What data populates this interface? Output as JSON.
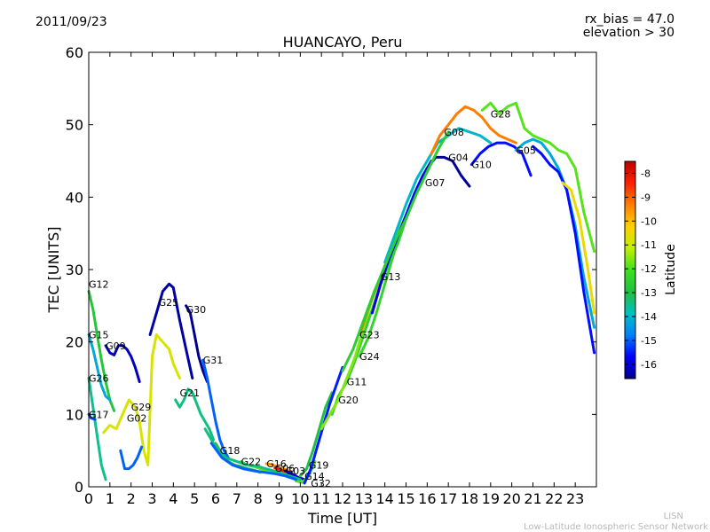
{
  "header": {
    "date": "2011/09/23",
    "rx_bias": "rx_bias = 47.0",
    "elevation": "elevation > 30"
  },
  "footer": {
    "line1": "LISN",
    "line2": "Low-Latitude Ionospheric Sensor Network"
  },
  "chart_data": {
    "type": "scatter",
    "title": "HUANCAYO, Peru",
    "xlabel": "Time [UT]",
    "ylabel": "TEC [UNITS]",
    "xlim": [
      0,
      24
    ],
    "ylim": [
      0,
      60
    ],
    "xticks": [
      0,
      1,
      2,
      3,
      4,
      5,
      6,
      7,
      8,
      9,
      10,
      11,
      12,
      13,
      14,
      15,
      16,
      17,
      18,
      19,
      20,
      21,
      22,
      23
    ],
    "yticks": [
      0,
      10,
      20,
      30,
      40,
      50,
      60
    ],
    "colorbar": {
      "label": "Latitude",
      "range": [
        -16.6,
        -7.5
      ],
      "ticks": [
        -8,
        -9,
        -10,
        -11,
        -12,
        -13,
        -14,
        -15,
        -16
      ],
      "colors": [
        "#00008f",
        "#0000ff",
        "#0080ff",
        "#00c0c0",
        "#20c040",
        "#40e020",
        "#c0f000",
        "#ffd000",
        "#ff8000",
        "#ff2000",
        "#c00000"
      ]
    },
    "series": [
      {
        "name": "G12",
        "label_x": 0.0,
        "label_y": 28.0,
        "lat": -12.8,
        "x": [
          0.0,
          0.2,
          0.4,
          0.6,
          0.8,
          1.0,
          1.2
        ],
        "y": [
          27.0,
          24.5,
          21.0,
          17.5,
          14.5,
          12.0,
          10.5
        ]
      },
      {
        "name": "G15",
        "label_x": 0.0,
        "label_y": 21.0,
        "lat": -14.2,
        "x": [
          0.0,
          0.2,
          0.4,
          0.6,
          0.8,
          1.0
        ],
        "y": [
          21.0,
          19.0,
          16.5,
          14.0,
          12.5,
          12.0
        ]
      },
      {
        "name": "G26",
        "label_x": 0.0,
        "label_y": 15.0,
        "lat": -13.5,
        "x": [
          0.0,
          0.2,
          0.4,
          0.6,
          0.8
        ],
        "y": [
          15.0,
          11.0,
          7.0,
          3.0,
          1.0
        ]
      },
      {
        "name": "G17",
        "label_x": 0.0,
        "label_y": 10.0,
        "lat": -15.2,
        "x": [
          0.0,
          0.1,
          0.2,
          0.3
        ],
        "y": [
          10.0,
          9.5,
          9.4,
          9.3
        ]
      },
      {
        "name": "G09",
        "label_x": 0.8,
        "label_y": 19.5,
        "lat": -16.2,
        "x": [
          0.8,
          1.0,
          1.2,
          1.4,
          1.6,
          1.8,
          2.0,
          2.2,
          2.4
        ],
        "y": [
          19.5,
          18.5,
          18.2,
          19.5,
          19.5,
          19.0,
          18.0,
          16.5,
          14.5
        ]
      },
      {
        "name": "G29",
        "label_x": 2.0,
        "label_y": 11.0,
        "lat": -10.8,
        "x": [
          0.7,
          1.0,
          1.3,
          1.6,
          1.9,
          2.2,
          2.4,
          2.6,
          2.8,
          3.0,
          3.2,
          3.5,
          3.8,
          4.0,
          4.3
        ],
        "y": [
          7.5,
          8.5,
          8.0,
          10.0,
          12.0,
          11.0,
          9.0,
          5.0,
          3.0,
          18.0,
          21.0,
          20.0,
          19.0,
          17.0,
          15.0
        ]
      },
      {
        "name": "G02",
        "label_x": 1.8,
        "label_y": 9.5,
        "lat": -15.0,
        "x": [
          1.5,
          1.7,
          1.9,
          2.1,
          2.3,
          2.5
        ],
        "y": [
          5.0,
          2.5,
          2.5,
          3.0,
          4.0,
          5.5
        ]
      },
      {
        "name": "G25",
        "label_x": 3.3,
        "label_y": 25.5,
        "lat": -16.4,
        "x": [
          2.9,
          3.2,
          3.5,
          3.8,
          4.0,
          4.3,
          4.6,
          4.9
        ],
        "y": [
          21.0,
          24.0,
          27.0,
          28.0,
          27.5,
          23.0,
          19.0,
          15.0
        ]
      },
      {
        "name": "G30",
        "label_x": 4.6,
        "label_y": 24.5,
        "lat": -16.6,
        "x": [
          4.6,
          4.8,
          5.0,
          5.2,
          5.4,
          5.6
        ],
        "y": [
          25.0,
          24.0,
          21.0,
          18.0,
          16.0,
          14.5
        ]
      },
      {
        "name": "G31",
        "label_x": 5.4,
        "label_y": 17.5,
        "lat": -15.0,
        "x": [
          5.4,
          5.6,
          5.8,
          6.0,
          6.2,
          6.4,
          6.6
        ],
        "y": [
          17.5,
          15.0,
          12.0,
          9.0,
          6.5,
          5.0,
          4.0
        ]
      },
      {
        "name": "G21",
        "label_x": 4.3,
        "label_y": 13.0,
        "lat": -13.4,
        "x": [
          4.1,
          4.3,
          4.5,
          4.7,
          4.9,
          5.1,
          5.3,
          5.5,
          5.7,
          5.9
        ],
        "y": [
          12.0,
          11.0,
          12.0,
          13.5,
          13.0,
          11.5,
          10.0,
          9.0,
          8.0,
          6.5
        ]
      },
      {
        "name": "G18",
        "label_x": 6.2,
        "label_y": 5.0,
        "lat": -13.0,
        "x": [
          6.0,
          6.3,
          6.6,
          6.9,
          7.2,
          7.5,
          7.8,
          8.1
        ],
        "y": [
          6.0,
          4.5,
          3.5,
          3.0,
          2.8,
          2.5,
          2.3,
          2.0
        ]
      },
      {
        "name": "G22",
        "label_x": 7.2,
        "label_y": 3.5,
        "lat": -11.8,
        "x": [
          7.2,
          7.5,
          7.8,
          8.1,
          8.4,
          8.7,
          9.0
        ],
        "y": [
          3.5,
          3.0,
          2.8,
          2.5,
          2.2,
          2.0,
          1.8
        ]
      },
      {
        "name": "G16",
        "label_x": 8.4,
        "label_y": 3.2,
        "lat": -9.5,
        "x": [
          8.4,
          8.7,
          9.0,
          9.3,
          9.6
        ],
        "y": [
          3.2,
          3.0,
          2.7,
          2.4,
          2.0
        ]
      },
      {
        "name": "G06",
        "label_x": 8.8,
        "label_y": 2.6,
        "lat": -8.2,
        "x": [
          8.8,
          9.1,
          9.4,
          9.7,
          10.0
        ],
        "y": [
          2.6,
          2.3,
          2.0,
          1.5,
          1.0
        ]
      },
      {
        "name": "G03",
        "label_x": 9.3,
        "label_y": 2.2,
        "lat": -16.0,
        "x": [
          9.3,
          9.6,
          9.9,
          10.2
        ],
        "y": [
          2.2,
          1.8,
          1.3,
          1.0
        ]
      },
      {
        "name": "G19",
        "label_x": 10.4,
        "label_y": 3.0,
        "lat": -13.0,
        "x": [
          10.0,
          10.3,
          10.6,
          10.9,
          11.2,
          11.5
        ],
        "y": [
          1.5,
          2.5,
          5.0,
          8.0,
          11.0,
          13.0
        ]
      },
      {
        "name": "G14",
        "label_x": 10.2,
        "label_y": 1.5,
        "lat": -12.0,
        "x": [
          9.8,
          10.1,
          10.4,
          10.7
        ],
        "y": [
          0.8,
          0.6,
          1.5,
          3.5
        ]
      },
      {
        "name": "G32",
        "label_x": 10.5,
        "label_y": 0.5,
        "lat": -15.5,
        "x": [
          10.2,
          10.5,
          10.8,
          11.1,
          11.4,
          11.7,
          12.0
        ],
        "y": [
          0.5,
          2.5,
          5.5,
          8.5,
          11.5,
          14.0,
          16.5
        ]
      },
      {
        "name": "G11",
        "label_x": 12.2,
        "label_y": 14.5,
        "lat": -12.5,
        "x": [
          11.5,
          11.8,
          12.2,
          12.6,
          13.0,
          13.4,
          13.8,
          14.2,
          14.6,
          15.0,
          15.4,
          15.8
        ],
        "y": [
          10.0,
          12.5,
          14.5,
          17.5,
          21.0,
          24.5,
          28.0,
          31.0,
          33.5,
          37.0,
          40.0,
          43.0
        ]
      },
      {
        "name": "G20",
        "label_x": 11.8,
        "label_y": 12.0,
        "lat": -11.6,
        "x": [
          11.0,
          11.4,
          11.8,
          12.2,
          12.6,
          13.0,
          13.4,
          13.8,
          14.2,
          14.6,
          15.0
        ],
        "y": [
          8.0,
          10.0,
          12.0,
          15.0,
          18.0,
          22.0,
          26.0,
          29.0,
          32.0,
          35.0,
          37.5
        ]
      },
      {
        "name": "G24",
        "label_x": 12.8,
        "label_y": 18.0,
        "lat": -12.4,
        "x": [
          12.8,
          13.2,
          13.6,
          14.0,
          14.4,
          14.8,
          15.2,
          15.6,
          16.0
        ],
        "y": [
          18.0,
          20.5,
          24.0,
          28.0,
          32.0,
          35.5,
          38.5,
          41.5,
          44.0
        ]
      },
      {
        "name": "G23",
        "label_x": 12.8,
        "label_y": 21.0,
        "lat": -9.0,
        "x": [
          12.8,
          13.2,
          13.6,
          14.0,
          14.4
        ],
        "y": [
          21.0,
          24.5,
          27.5,
          30.5,
          33.5
        ]
      },
      {
        "name": "G13",
        "label_x": 13.8,
        "label_y": 29.0,
        "lat": -15.8,
        "x": [
          13.4,
          13.8,
          14.2,
          14.6,
          15.0,
          15.4,
          15.8,
          16.2
        ],
        "y": [
          24.0,
          28.0,
          31.5,
          34.5,
          37.5,
          40.5,
          43.0,
          45.0
        ]
      },
      {
        "name": "G07",
        "label_x": 15.9,
        "label_y": 42.0,
        "lat": -14.0,
        "x": [
          14.0,
          14.5,
          15.0,
          15.5,
          16.0,
          16.5,
          17.0,
          17.5,
          18.0,
          18.5,
          19.0
        ],
        "y": [
          31.0,
          35.0,
          39.0,
          42.5,
          45.0,
          47.5,
          48.5,
          49.5,
          49.0,
          48.5,
          47.5
        ]
      },
      {
        "name": "G04",
        "label_x": 17.0,
        "label_y": 45.5,
        "lat": -16.5,
        "x": [
          16.0,
          16.4,
          16.8,
          17.2,
          17.6,
          18.0
        ],
        "y": [
          44.0,
          45.5,
          45.5,
          45.0,
          43.0,
          41.5
        ]
      },
      {
        "name": "G08",
        "label_x": 16.8,
        "label_y": 49.0,
        "lat": -9.3,
        "x": [
          16.2,
          16.6,
          17.0,
          17.4,
          17.8,
          18.2,
          18.6,
          19.0,
          19.4,
          19.8,
          20.2
        ],
        "y": [
          46.0,
          48.5,
          50.0,
          51.5,
          52.5,
          52.0,
          51.0,
          49.5,
          48.5,
          48.0,
          47.5
        ]
      },
      {
        "name": "G10",
        "label_x": 18.1,
        "label_y": 44.5,
        "lat": -15.6,
        "x": [
          18.1,
          18.5,
          18.9,
          19.3,
          19.7,
          20.1,
          20.5,
          20.9
        ],
        "y": [
          44.5,
          46.0,
          47.0,
          47.5,
          47.5,
          47.0,
          46.0,
          43.0
        ]
      },
      {
        "name": "G28",
        "label_x": 19.0,
        "label_y": 51.5,
        "lat": -11.9,
        "x": [
          18.6,
          19.0,
          19.4,
          19.8,
          20.2,
          20.6,
          21.0,
          21.4,
          21.8,
          22.2,
          22.6,
          23.0,
          23.4,
          23.9
        ],
        "y": [
          52.0,
          53.0,
          51.5,
          52.5,
          53.0,
          49.5,
          48.5,
          48.0,
          47.5,
          46.5,
          46.0,
          44.0,
          38.0,
          32.5
        ]
      },
      {
        "name": "G05",
        "label_x": 20.2,
        "label_y": 46.5,
        "lat": -14.2,
        "x": [
          20.2,
          20.6,
          21.0,
          21.4,
          21.8,
          22.2,
          22.6,
          23.0,
          23.4,
          23.9
        ],
        "y": [
          46.5,
          47.5,
          48.0,
          47.5,
          46.0,
          44.0,
          41.0,
          36.0,
          29.0,
          22.0
        ]
      },
      {
        "name": "",
        "label_x": 0,
        "label_y": 0,
        "lat": -15.6,
        "x": [
          21.0,
          21.4,
          21.8,
          22.2,
          22.6,
          23.0,
          23.4,
          23.9
        ],
        "y": [
          47.0,
          46.0,
          44.5,
          43.5,
          41.0,
          35.0,
          27.0,
          18.5
        ]
      },
      {
        "name": "",
        "label_x": 0,
        "label_y": 0,
        "lat": -10.5,
        "x": [
          22.4,
          22.8,
          23.2,
          23.6,
          23.9
        ],
        "y": [
          42.0,
          41.0,
          37.0,
          30.0,
          24.0
        ]
      },
      {
        "name": "",
        "label_x": 0,
        "label_y": 0,
        "lat": -12.6,
        "x": [
          12.0,
          12.5,
          13.0,
          13.5,
          14.0,
          14.5,
          15.0,
          15.5,
          16.0,
          16.5,
          17.0
        ],
        "y": [
          16.0,
          19.0,
          23.0,
          27.0,
          30.5,
          34.0,
          37.0,
          40.5,
          43.5,
          46.5,
          49.0
        ]
      },
      {
        "name": "",
        "label_x": 0,
        "label_y": 0,
        "lat": -13.4,
        "x": [
          5.5,
          6.0,
          6.5,
          7.0,
          7.5,
          8.0,
          8.5,
          9.0,
          9.5,
          10.0
        ],
        "y": [
          8.0,
          5.5,
          4.0,
          3.5,
          3.0,
          2.8,
          2.4,
          2.0,
          1.5,
          1.0
        ]
      },
      {
        "name": "",
        "label_x": 0,
        "label_y": 0,
        "lat": -15.0,
        "x": [
          5.8,
          6.3,
          6.8,
          7.3,
          7.8,
          8.3,
          8.8,
          9.3,
          9.8
        ],
        "y": [
          6.0,
          4.0,
          3.0,
          2.5,
          2.2,
          2.0,
          1.8,
          1.5,
          1.0
        ]
      }
    ]
  }
}
